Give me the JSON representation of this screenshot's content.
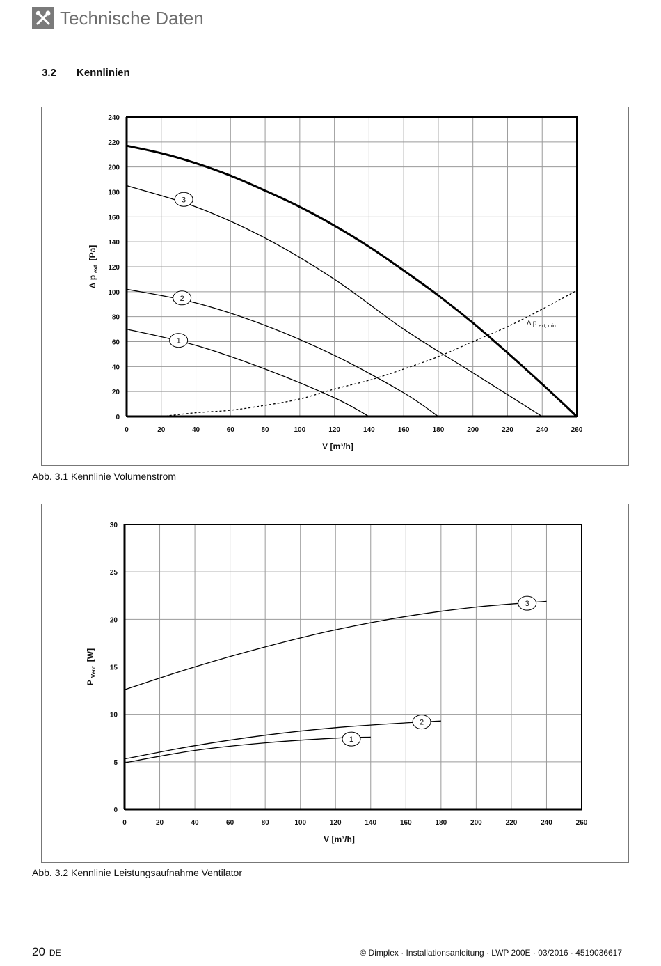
{
  "header": {
    "title": "Technische Daten",
    "icon": "tools-icon"
  },
  "section": {
    "number": "3.2",
    "title": "Kennlinien"
  },
  "figures": [
    {
      "caption": "Abb. 3.1  Kennlinie Volumenstrom"
    },
    {
      "caption": "Abb. 3.2  Kennlinie Leistungsaufnahme Ventilator"
    }
  ],
  "footer": {
    "page": "20",
    "lang": "DE",
    "text": "© Dimplex · Installationsanleitung · LWP 200E · 03/2016 · 4519036617"
  },
  "chart_data": [
    {
      "type": "line",
      "xlabel": "V  [m³/h]",
      "ylabel": {
        "main": "Δ p",
        "sub": "ext",
        "unit": "[Pa]"
      },
      "xlim": [
        0,
        260
      ],
      "ylim": [
        0,
        240
      ],
      "xticks": [
        "0",
        "20",
        "40",
        "60",
        "80",
        "100",
        "120",
        "140",
        "160",
        "180",
        "200",
        "220",
        "240",
        "260"
      ],
      "yticks": [
        "0",
        "20",
        "40",
        "60",
        "80",
        "100",
        "120",
        "140",
        "160",
        "180",
        "200",
        "220",
        "240"
      ],
      "grid": true,
      "series": [
        {
          "name": "",
          "style": "bold",
          "x": [
            0,
            20,
            40,
            60,
            80,
            100,
            120,
            140,
            160,
            180,
            200,
            220,
            240,
            260
          ],
          "y": [
            217,
            211,
            203,
            193,
            181,
            168,
            153,
            136,
            117,
            97,
            75,
            51,
            26,
            0
          ]
        },
        {
          "name": "3",
          "style": "solid",
          "x": [
            0,
            40,
            80,
            120,
            160,
            200,
            240
          ],
          "y": [
            185,
            168,
            143,
            110,
            70,
            35,
            0
          ]
        },
        {
          "name": "2",
          "style": "solid",
          "x": [
            0,
            40,
            80,
            120,
            160,
            180
          ],
          "y": [
            102,
            91,
            73,
            49,
            19,
            0
          ]
        },
        {
          "name": "1",
          "style": "solid",
          "x": [
            0,
            40,
            80,
            120,
            140
          ],
          "y": [
            70,
            57,
            38,
            15,
            0
          ]
        },
        {
          "name": "Δ p ext, min",
          "style": "dashed",
          "x": [
            20,
            40,
            60,
            80,
            100,
            120,
            140,
            160,
            180,
            200,
            220,
            240,
            260
          ],
          "y": [
            0,
            3,
            5,
            9,
            14,
            22,
            29,
            38,
            48,
            60,
            72,
            86,
            101
          ]
        }
      ],
      "annotations": [
        {
          "text": "3",
          "x": 33,
          "y": 174
        },
        {
          "text": "2",
          "x": 32,
          "y": 95
        },
        {
          "text": "1",
          "x": 30,
          "y": 61
        },
        {
          "text": "Δ p",
          "sub": "ext, min",
          "x": 231,
          "y": 73
        }
      ]
    },
    {
      "type": "line",
      "xlabel": "V  [m³/h]",
      "ylabel": {
        "main": "P",
        "sub": "Vent",
        "unit": "[W]"
      },
      "xlim": [
        0,
        260
      ],
      "ylim": [
        0,
        30
      ],
      "xticks": [
        "0",
        "20",
        "40",
        "60",
        "80",
        "100",
        "120",
        "140",
        "160",
        "180",
        "200",
        "220",
        "240",
        "260"
      ],
      "yticks": [
        "0",
        "5",
        "10",
        "15",
        "20",
        "25",
        "30"
      ],
      "grid": true,
      "series": [
        {
          "name": "3",
          "style": "solid",
          "x": [
            0,
            40,
            80,
            120,
            160,
            200,
            240
          ],
          "y": [
            12.6,
            15.0,
            17.1,
            18.9,
            20.3,
            21.3,
            21.9
          ]
        },
        {
          "name": "2",
          "style": "solid",
          "x": [
            0,
            40,
            80,
            120,
            160,
            180
          ],
          "y": [
            5.3,
            6.7,
            7.8,
            8.6,
            9.1,
            9.3
          ]
        },
        {
          "name": "1",
          "style": "solid",
          "x": [
            0,
            40,
            80,
            120,
            140
          ],
          "y": [
            4.9,
            6.2,
            7.0,
            7.5,
            7.6
          ]
        }
      ],
      "annotations": [
        {
          "text": "3",
          "x": 229,
          "y": 21.7
        },
        {
          "text": "2",
          "x": 169,
          "y": 9.2
        },
        {
          "text": "1",
          "x": 129,
          "y": 7.4
        }
      ]
    }
  ]
}
